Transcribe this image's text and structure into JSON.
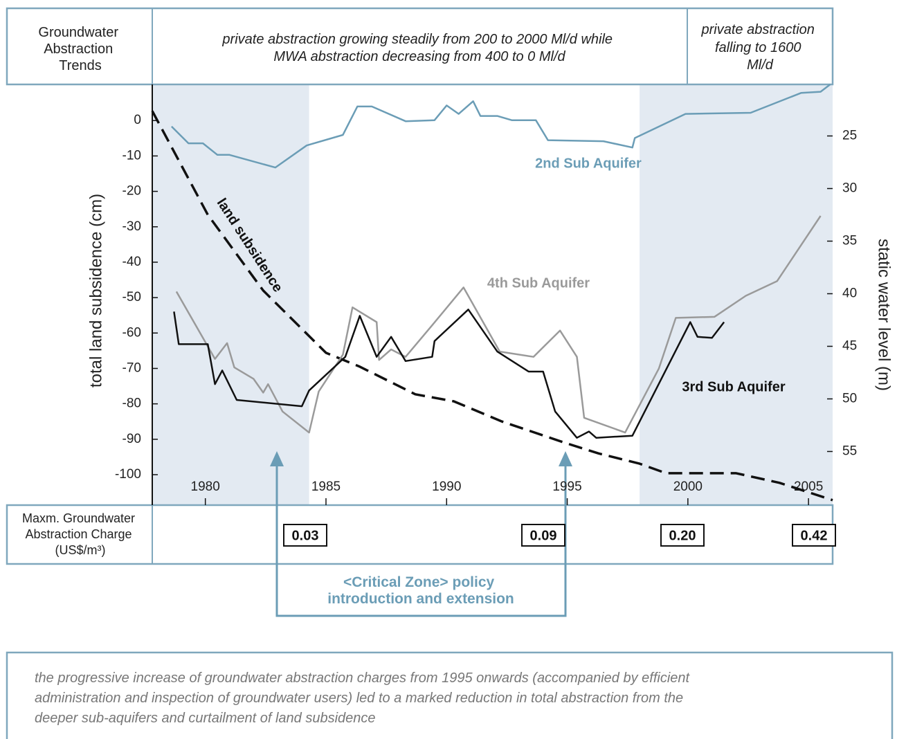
{
  "chart_data": {
    "type": "line",
    "xlim": [
      1977.8,
      2006.0
    ],
    "ylim": [
      -108.6,
      10.2
    ],
    "y2lim": [
      60.1,
      20.1
    ],
    "xticks": [
      1980,
      1985,
      1990,
      1995,
      2000,
      2005
    ],
    "yticks": [
      0,
      -10,
      -20,
      -30,
      -40,
      -50,
      -60,
      -70,
      -80,
      -90,
      -100
    ],
    "y2ticks": [
      25,
      30,
      35,
      40,
      45,
      50,
      55
    ],
    "ylabel": "total  land  subsidence (cm)",
    "y2label": "static water level (m)",
    "highlight_spans": [
      [
        1977.8,
        1984.3
      ],
      [
        1998.0,
        2006.0
      ]
    ],
    "highlight_color": "#e3eaf2",
    "series": [
      {
        "name": "land subsidence",
        "color": "#111111",
        "dashed": true,
        "axis": "y",
        "x": [
          1977.8,
          1980.1,
          1982.4,
          1985.0,
          1986.4,
          1988.7,
          1990.3,
          1992.3,
          1994.9,
          1996.3,
          1998.0,
          1999.1,
          2002.0,
          2003.8,
          2006.0
        ],
        "values": [
          2.7,
          -26.6,
          -48,
          -65.6,
          -69.5,
          -77.3,
          -79.3,
          -85,
          -91,
          -94,
          -96.9,
          -99.6,
          -99.6,
          -102.3,
          -107.2
        ]
      },
      {
        "name": "2nd Sub Aquifer",
        "color": "#6b9db6",
        "axis": "y2",
        "x": [
          1978.6,
          1979.3,
          1979.9,
          1980.5,
          1981.0,
          1982.9,
          1984.2,
          1985.7,
          1986.3,
          1986.9,
          1988.3,
          1989.5,
          1990.0,
          1990.5,
          1991.1,
          1991.4,
          1992.1,
          1992.7,
          1993.7,
          1994.2,
          1996.5,
          1997.7,
          1997.8,
          1999.9,
          2002.6,
          2004.7,
          2005.5,
          2005.9
        ],
        "values": [
          24.1,
          25.7,
          25.7,
          26.8,
          26.8,
          28.0,
          25.9,
          24.9,
          22.2,
          22.2,
          23.6,
          23.5,
          22.1,
          22.9,
          21.7,
          23.1,
          23.1,
          23.5,
          23.5,
          25.4,
          25.5,
          26.1,
          25.2,
          22.9,
          22.8,
          20.9,
          20.8,
          20.1
        ]
      },
      {
        "name": "4th Sub Aquifer",
        "color": "#9a9a9a",
        "axis": "y2",
        "x": [
          1978.8,
          1980.4,
          1980.9,
          1981.2,
          1982.0,
          1982.4,
          1982.6,
          1983.2,
          1984.3,
          1984.7,
          1985.7,
          1986.1,
          1987.1,
          1987.2,
          1987.7,
          1988.3,
          1989.4,
          1990.7,
          1992.2,
          1993.6,
          1994.7,
          1995.4,
          1995.7,
          1997.4,
          1998.8,
          1999.5,
          2001.1,
          2002.4,
          2003.7,
          2005.5
        ],
        "values": [
          39.8,
          46.2,
          44.7,
          47.0,
          48.1,
          49.4,
          48.6,
          51.2,
          53.2,
          49.3,
          45.8,
          41.3,
          42.7,
          46.3,
          45.3,
          46.0,
          43.0,
          39.4,
          45.5,
          46.0,
          43.5,
          46.0,
          51.8,
          53.2,
          47.1,
          42.3,
          42.2,
          40.2,
          38.8,
          32.6
        ]
      },
      {
        "name": "3rd Sub Aquifer",
        "color": "#111111",
        "axis": "y2",
        "x": [
          1978.7,
          1978.9,
          1980.1,
          1980.4,
          1980.7,
          1981.3,
          1984.0,
          1984.3,
          1985.8,
          1986.4,
          1987.1,
          1987.7,
          1988.3,
          1989.4,
          1989.5,
          1990.9,
          1992.1,
          1993.4,
          1994.0,
          1994.5,
          1995.4,
          1995.9,
          1996.2,
          1997.7,
          2000.1,
          2000.4,
          2001.0,
          2001.5
        ],
        "values": [
          41.7,
          44.8,
          44.8,
          48.6,
          47.3,
          50.1,
          50.7,
          49.2,
          46.0,
          42.1,
          46.0,
          44.1,
          46.4,
          46.0,
          44.5,
          41.5,
          45.5,
          47.4,
          47.4,
          51.2,
          53.7,
          53.1,
          53.7,
          53.5,
          42.7,
          44.1,
          44.2,
          42.7
        ]
      }
    ]
  },
  "header": {
    "label_lines": [
      "Groundwater",
      "Abstraction",
      "Trends"
    ],
    "trend_1_lines": [
      "private abstraction growing steadily from 200 to 2000 Ml/d while",
      "MWA abstraction decreasing from 400 to 0 Ml/d"
    ],
    "trend_2_lines": [
      "private abstraction",
      "falling to 1600",
      "Ml/d"
    ]
  },
  "charges": {
    "label_lines": [
      "Maxm. Groundwater",
      "Abstraction Charge",
      "(US$/m³)"
    ],
    "values": [
      "0.03",
      "0.09",
      "0.20",
      "0.42"
    ]
  },
  "policy_note_lines": [
    "<Critical Zone> policy",
    "introduction and extension"
  ],
  "footer_lines": [
    "the progressive  increase of groundwater abstraction charges from 1995 onwards (accompanied by efficient",
    "administration and inspection of groundwater users) led to a marked reduction in total abstraction from the",
    "deeper sub-aquifers and curtailment of land subsidence"
  ]
}
